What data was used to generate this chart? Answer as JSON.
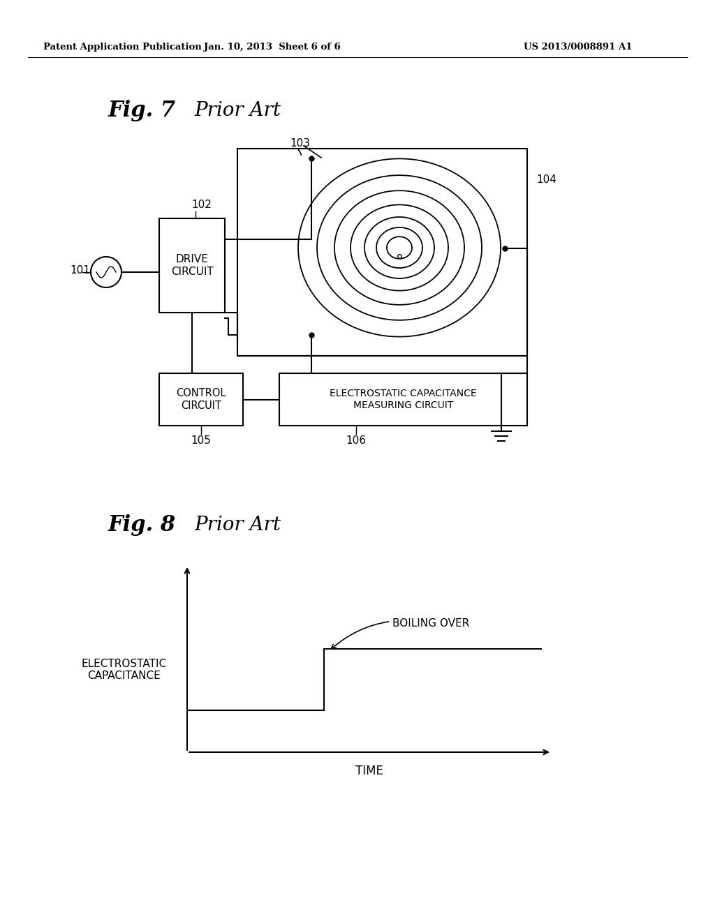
{
  "bg_color": "#ffffff",
  "text_color": "#000000",
  "header_left": "Patent Application Publication",
  "header_center": "Jan. 10, 2013  Sheet 6 of 6",
  "header_right": "US 2013/0008891 A1",
  "fig7_title": "Fig. 7",
  "fig7_subtitle": "Prior Art",
  "fig8_title": "Fig. 8",
  "fig8_subtitle": "Prior Art",
  "fig8_ylabel": "ELECTROSTATIC\nCAPACITANCE",
  "fig8_xlabel": "TIME",
  "fig8_annotation": "BOILING OVER",
  "label_101": "101",
  "label_102": "102",
  "label_103": "103",
  "label_104": "104",
  "label_105": "105",
  "label_106": "106",
  "box_drive_circuit": "DRIVE\nCIRCUIT",
  "box_control_circuit": "CONTROL\nCIRCUIT",
  "box_electrostatic": "ELECTROSTATIC CAPACITANCE\nMEASURING CIRCUIT"
}
